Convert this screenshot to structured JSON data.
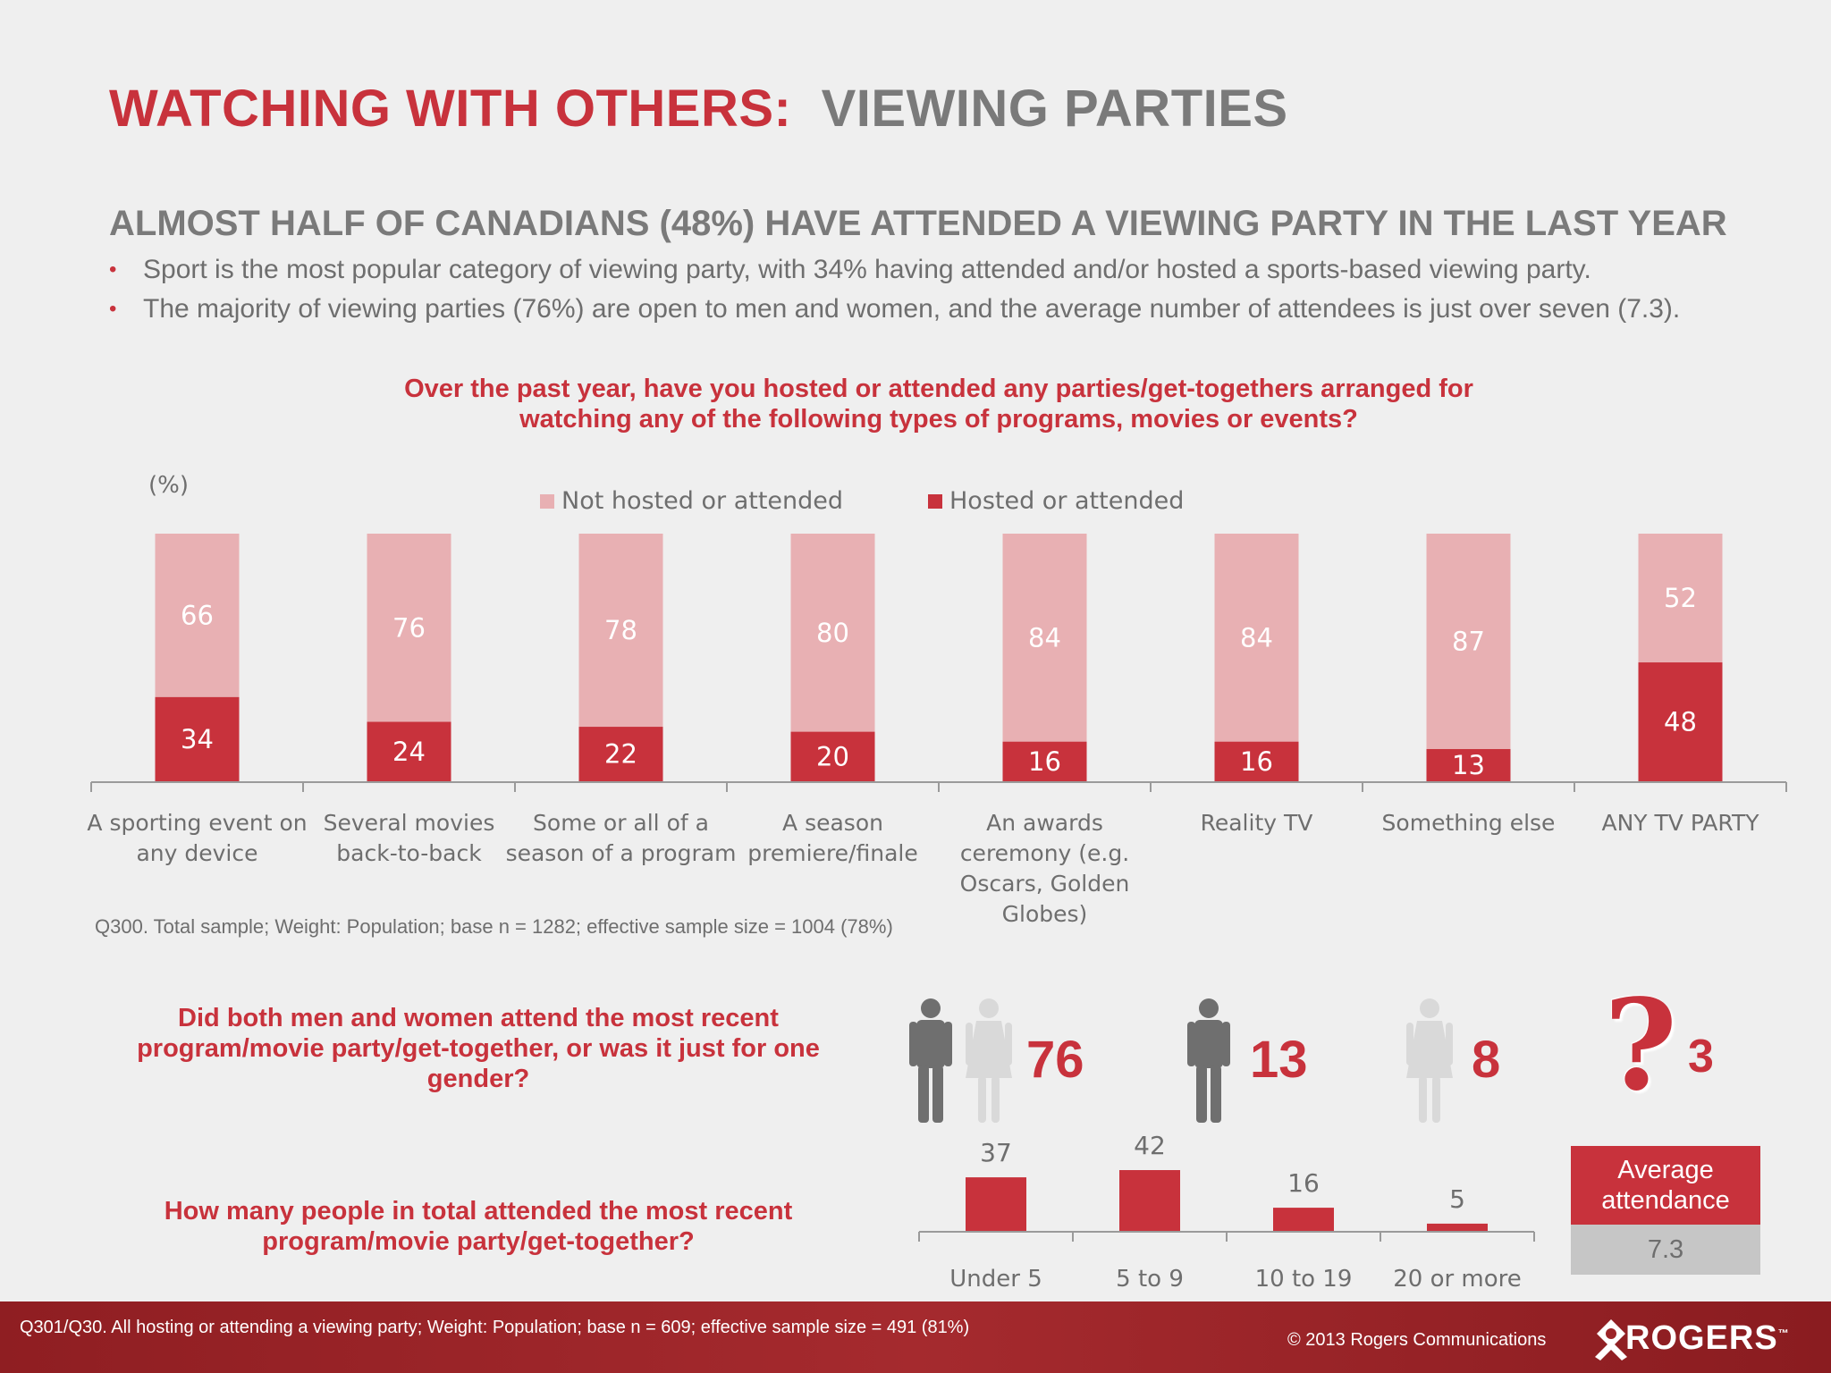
{
  "header": {
    "title_red": "WATCHING WITH OTHERS:",
    "title_grey": "VIEWING PARTIES",
    "subtitle": "ALMOST HALF OF CANADIANS (48%) HAVE ATTENDED A VIEWING PARTY IN THE LAST YEAR",
    "bullets": [
      "Sport is the most popular category of viewing party, with 34% having attended and/or hosted a sports-based viewing party.",
      "The majority of viewing parties (76%) are open to men and women, and the average number of attendees is just over seven (7.3)."
    ],
    "bullet_glyph": "•"
  },
  "colors": {
    "red": "#c8323c",
    "pink": "#e8b0b3",
    "grey_dark": "#6f6f6f",
    "grey_light": "#d9d9d9"
  },
  "chart_data": [
    {
      "type": "bar",
      "stacked": true,
      "title": "Over the past year, have you hosted or attended any parties/get-togethers arranged for watching any of the following types of programs, movies or events?",
      "unit_label": "(%)",
      "categories": [
        [
          "A sporting event on",
          "any device"
        ],
        [
          "Several movies",
          "back-to-back"
        ],
        [
          "Some or all of a",
          "season of a program"
        ],
        [
          "A season",
          "premiere/finale"
        ],
        [
          "An awards",
          "ceremony (e.g.",
          "Oscars, Golden",
          "Globes)"
        ],
        [
          "Reality TV"
        ],
        [
          "Something else"
        ],
        [
          "ANY TV PARTY"
        ]
      ],
      "series": [
        {
          "name": "Hosted or attended",
          "values": [
            34,
            24,
            22,
            20,
            16,
            16,
            13,
            48
          ]
        },
        {
          "name": "Not hosted or attended",
          "values": [
            66,
            76,
            78,
            80,
            84,
            84,
            87,
            52
          ]
        }
      ],
      "ylim": [
        0,
        100
      ],
      "legend_order": [
        "Not hosted or attended",
        "Hosted or attended"
      ],
      "note": "Q300. Total sample; Weight: Population; base n = 1282; effective sample size = 1004 (78%)"
    },
    {
      "type": "bar",
      "title": "How many people in total attended the most recent program/movie party/get-together?",
      "categories": [
        "Under 5",
        "5 to 9",
        "10 to 19",
        "20 or more"
      ],
      "values": [
        37,
        42,
        16,
        5
      ],
      "ylim": [
        0,
        50
      ],
      "average": {
        "label": "Average attendance",
        "value": "7.3"
      }
    }
  ],
  "gender": {
    "question": "Did both men and women attend the most recent program/movie party/get-together, or was it just for one gender?",
    "items": [
      {
        "icon": "man-and-woman-icon",
        "value": "76"
      },
      {
        "icon": "man-icon",
        "value": "13"
      },
      {
        "icon": "woman-icon",
        "value": "8"
      },
      {
        "icon": "question-mark-icon",
        "value": "3",
        "glyph": "?"
      }
    ]
  },
  "footer": {
    "note": "Q301/Q30. All hosting or attending a viewing party; Weight: Population; base n = 609; effective sample size = 491 (81%)",
    "copyright": "© 2013 Rogers Communications",
    "logo": "ROGERS",
    "trademark": "™"
  }
}
